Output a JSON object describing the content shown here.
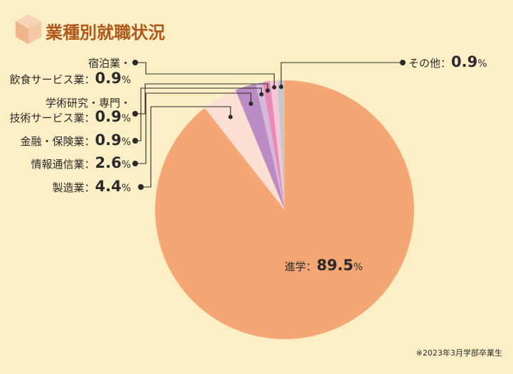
{
  "title": "業種別就職状況",
  "note": "※2023年3月学部卒業生",
  "colors": {
    "title": "#b0571c",
    "background": "#fcefc6",
    "cube_icon": [
      "#f7d3b8",
      "#f1b58a",
      "#f5c7a6"
    ]
  },
  "chart_data": {
    "type": "pie",
    "title": "業種別就職状況",
    "start": "12 o'clock",
    "direction": "clockwise",
    "slices": [
      {
        "label_lines": [
          "進学"
        ],
        "value": 89.5,
        "color": "#f4a775"
      },
      {
        "label_lines": [
          "製造業"
        ],
        "value": 4.4,
        "color": "#fbdfd2"
      },
      {
        "label_lines": [
          "情報通信業"
        ],
        "value": 2.6,
        "color": "#bb8cc3"
      },
      {
        "label_lines": [
          "金融・保険業"
        ],
        "value": 0.9,
        "color": "#d5b9da"
      },
      {
        "label_lines": [
          "学術研究・専門・",
          "技術サービス業"
        ],
        "value": 0.9,
        "color": "#e889b6"
      },
      {
        "label_lines": [
          "宿泊業・",
          "飲食サービス業"
        ],
        "value": 0.9,
        "color": "#f5c6d8"
      },
      {
        "label_lines": [
          "その他"
        ],
        "value": 0.9,
        "color": "#c8c8c8"
      }
    ],
    "value_text": [
      "89.5",
      "4.4",
      "2.6",
      "0.9",
      "0.9",
      "0.9",
      "0.9"
    ],
    "unit": "%",
    "label_separator": "："
  }
}
